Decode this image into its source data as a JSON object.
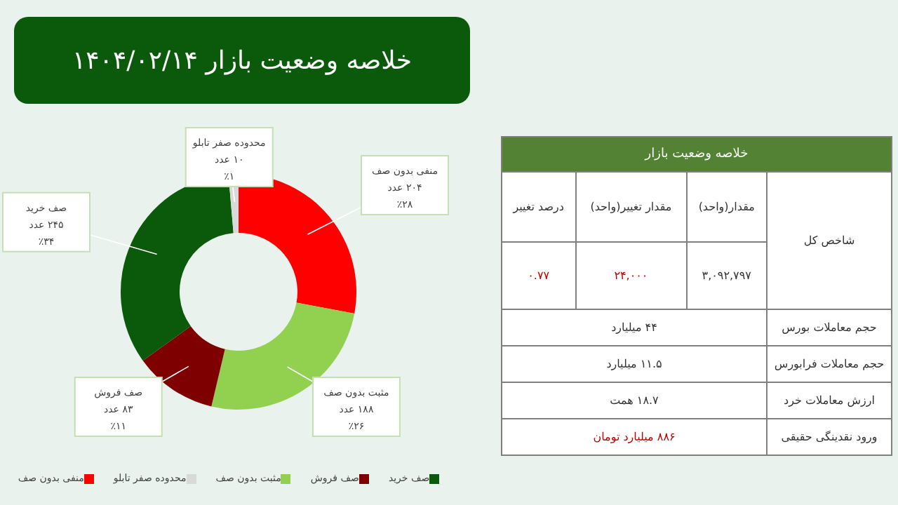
{
  "chart_data": [
    {
      "type": "donut",
      "title": "خلاصه وضعیت بازار ۱۴۰۴/۰۲/۱۴",
      "categories": [
        "منفی بدون صف",
        "مثبت بدون صف",
        "صف فروش",
        "صف خرید",
        "محدوده صفر تابلو"
      ],
      "values": [
        204,
        188,
        83,
        245,
        10
      ],
      "colors": [
        "#ff0000",
        "#92d050",
        "#7f0000",
        "#0b5a0b",
        "#d9d9d9"
      ],
      "value_labels": [
        "۲۰۴ عدد\n٪۲۸",
        "۱۸۸ عدد\n٪۲۶",
        "۸۳ عدد\n٪۱۱",
        "۲۴۵ عدد\n٪۳۴",
        "۱۰ عدد\n٪۱"
      ],
      "legend": "bottom"
    },
    {
      "type": "other",
      "title": "خلاصه وضعیت بازار",
      "annotations": [
        "شاخص کل",
        "مقدار(واحد)",
        "مقدار تغییر(واحد)",
        "درصد تغییر",
        "۳,۰۹۲,۷۹۷",
        "۲۴,۰۰۰",
        "۰.۷۷",
        "حجم معاملات بورس",
        "۴۴ میلیارد",
        "حجم معاملات فرابورس",
        "۱۱.۵ میلیارد",
        "ارزش معاملات خرد",
        "۱۸.۷ همت",
        "ورود نقدینگی حقیقی",
        "۸۸۶ میلیارد تومان"
      ]
    }
  ]
}
